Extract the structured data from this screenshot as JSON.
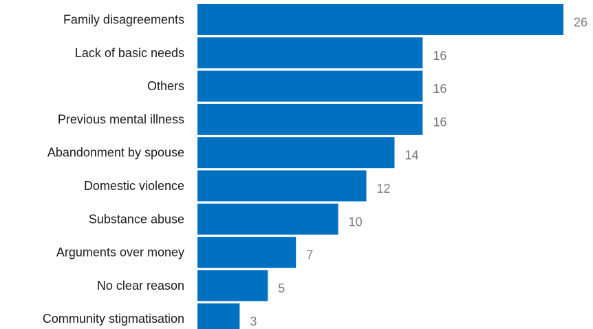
{
  "chart_data": {
    "type": "bar",
    "orientation": "horizontal",
    "categories": [
      "Family disagreements",
      "Lack of basic needs",
      "Others",
      "Previous mental illness",
      "Abandonment by spouse",
      "Domestic violence",
      "Substance abuse",
      "Arguments over money",
      "No clear reason",
      "Community stigmatisation"
    ],
    "values": [
      26,
      16,
      16,
      16,
      14,
      12,
      10,
      7,
      5,
      3
    ],
    "data_labels": [
      "26",
      "16",
      "16",
      "16",
      "14",
      "12",
      "10",
      "7",
      "5",
      "3"
    ],
    "xlim": [
      0,
      26
    ],
    "grid": false,
    "legend": "none",
    "bar_color": "#0070c0",
    "label_color": "#1a1a1a",
    "value_label_color": "#7a7a7a"
  }
}
